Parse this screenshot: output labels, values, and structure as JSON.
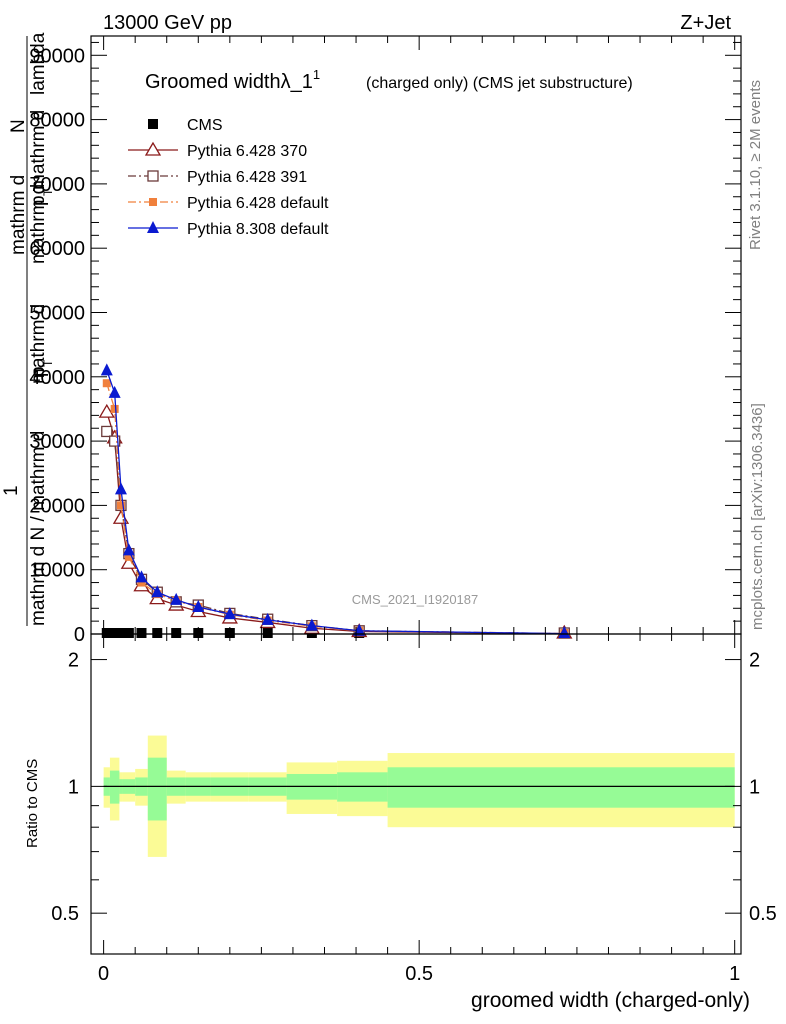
{
  "header": {
    "left": "13000 GeV pp",
    "right": "Z+Jet"
  },
  "side": {
    "rivet": "Rivet 3.1.10, ≥ 2M events",
    "mcplots": "mcplots.cern.ch [arXiv:1306.3436]"
  },
  "chart_data": {
    "type": "line",
    "title_main": "Groomed width",
    "title_lambda": "λ_1",
    "title_sup": "1",
    "title_rest": "(charged only) (CMS jet substructure)",
    "watermark": "CMS_2021_I1920187",
    "ylabel_lines": [
      "mathrm d²N",
      "1",
      "mathrm dp_T mathrm d lambda",
      "mathrm d N / mathrm dp_T"
    ],
    "ylabel_display": {
      "a": "mathrm d",
      "b": "N",
      "c": "mathrm d",
      "d": "p",
      "e": "mathrm d",
      "f": "mathrm d",
      "g": "lambda",
      "h": "T",
      "i": "1",
      "j": "mathrm d N / mathrm d",
      "k": "p",
      "l": "T"
    },
    "xlabel": "groomed width (charged-only)",
    "ratio_ylabel": "Ratio to CMS",
    "xlim": [
      -0.02,
      1.01
    ],
    "ylim": [
      0,
      93000
    ],
    "yticks": [
      10000,
      20000,
      30000,
      40000,
      50000,
      60000,
      70000,
      80000,
      90000
    ],
    "xticks": [
      "0",
      "0.5",
      "1"
    ],
    "ratio_ylim": [
      0.4,
      2.3
    ],
    "ratio_yticks": [
      "0.5",
      "1",
      "2"
    ],
    "x": [
      0.005,
      0.0175,
      0.0275,
      0.04,
      0.06,
      0.085,
      0.115,
      0.15,
      0.2,
      0.26,
      0.33,
      0.405,
      0.73
    ],
    "bin_edges": [
      0.0,
      0.01,
      0.025,
      0.03,
      0.05,
      0.07,
      0.1,
      0.13,
      0.17,
      0.23,
      0.29,
      0.37,
      0.45,
      1.0
    ],
    "series": [
      {
        "name": "CMS",
        "color": "#000000",
        "marker": "filled-square",
        "values": [
          100,
          100,
          100,
          100,
          100,
          100,
          100,
          100,
          100,
          100,
          100,
          100,
          100
        ]
      },
      {
        "name": "Pythia 6.428 370",
        "color": "#8b1a1a",
        "marker": "open-triangle",
        "dash": "solid",
        "values": [
          34500,
          30500,
          18000,
          11000,
          7500,
          5500,
          4500,
          3500,
          2500,
          1800,
          900,
          400,
          50
        ]
      },
      {
        "name": "Pythia 6.428 391",
        "color": "#6b3a3a",
        "marker": "open-square",
        "dash": "dashdot",
        "values": [
          31500,
          30000,
          20000,
          12500,
          8500,
          6500,
          5000,
          4500,
          3200,
          2300,
          1300,
          500,
          60
        ]
      },
      {
        "name": "Pythia 6.428 default",
        "color": "#f0803c",
        "marker": "small-filled-square",
        "dash": "dashdot",
        "values": [
          39000,
          35000,
          20000,
          12000,
          8000,
          6200,
          5200,
          4200,
          3000,
          2100,
          1200,
          500,
          60
        ]
      },
      {
        "name": "Pythia 8.308 default",
        "color": "#0a1ad0",
        "marker": "filled-triangle",
        "dash": "solid",
        "values": [
          41000,
          37500,
          22500,
          13000,
          8800,
          6500,
          5300,
          4200,
          3100,
          2200,
          1300,
          500,
          60
        ]
      }
    ],
    "ratio_bands": {
      "yellow_half": [
        0.11,
        0.17,
        0.08,
        0.08,
        0.1,
        0.32,
        0.09,
        0.08,
        0.08,
        0.08,
        0.14,
        0.15,
        0.2
      ],
      "green_half": [
        0.05,
        0.09,
        0.04,
        0.04,
        0.05,
        0.17,
        0.05,
        0.05,
        0.05,
        0.05,
        0.07,
        0.08,
        0.11
      ]
    },
    "legend_position": "top-left"
  }
}
